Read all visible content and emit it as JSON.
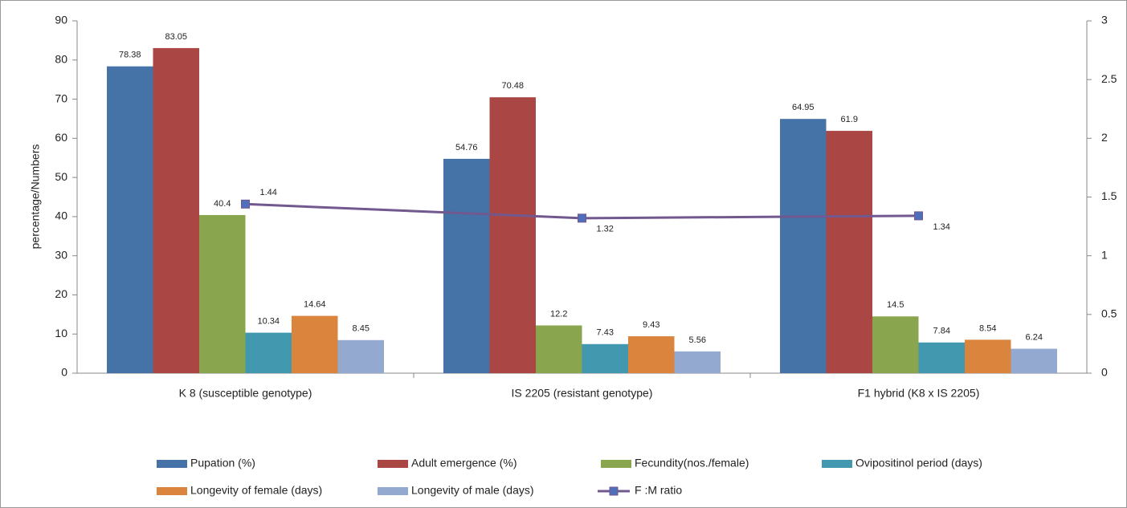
{
  "chart_data": {
    "type": "bar-line",
    "y_label": "percentage/Numbers",
    "categories": [
      "K 8 (susceptible genotype)",
      "IS 2205 (resistant genotype)",
      "F1 hybrid (K8 x IS 2205)"
    ],
    "series": [
      {
        "name": "Pupation (%)",
        "type": "bar",
        "color": "#4572a7",
        "values": [
          78.38,
          54.76,
          64.95
        ]
      },
      {
        "name": "Adult emergence (%)",
        "type": "bar",
        "color": "#aa4643",
        "values": [
          83.05,
          70.48,
          61.9
        ]
      },
      {
        "name": "Fecundity(nos./female)",
        "type": "bar",
        "color": "#89a54e",
        "values": [
          40.4,
          12.2,
          14.5
        ]
      },
      {
        "name": "Ovipositinol period (days)",
        "type": "bar",
        "color": "#4198af",
        "values": [
          10.34,
          7.43,
          7.84
        ]
      },
      {
        "name": "Longevity of female (days)",
        "type": "bar",
        "color": "#db843d",
        "values": [
          14.64,
          9.43,
          8.54
        ]
      },
      {
        "name": "Longevity of male (days)",
        "type": "bar",
        "color": "#93a9cf",
        "values": [
          8.45,
          5.56,
          6.24
        ]
      },
      {
        "name": "F :M ratio",
        "type": "line",
        "axis": "y2",
        "color": "#71588f",
        "marker_color": "#4f6fba",
        "values": [
          1.44,
          1.32,
          1.34
        ]
      }
    ],
    "ylim": [
      0,
      90
    ],
    "yticks": [
      0,
      10,
      20,
      30,
      40,
      50,
      60,
      70,
      80,
      90
    ],
    "y2lim": [
      0,
      3
    ],
    "y2ticks": [
      0,
      0.5,
      1,
      1.5,
      2,
      2.5,
      3
    ],
    "grid": false,
    "legend": "bottom"
  }
}
